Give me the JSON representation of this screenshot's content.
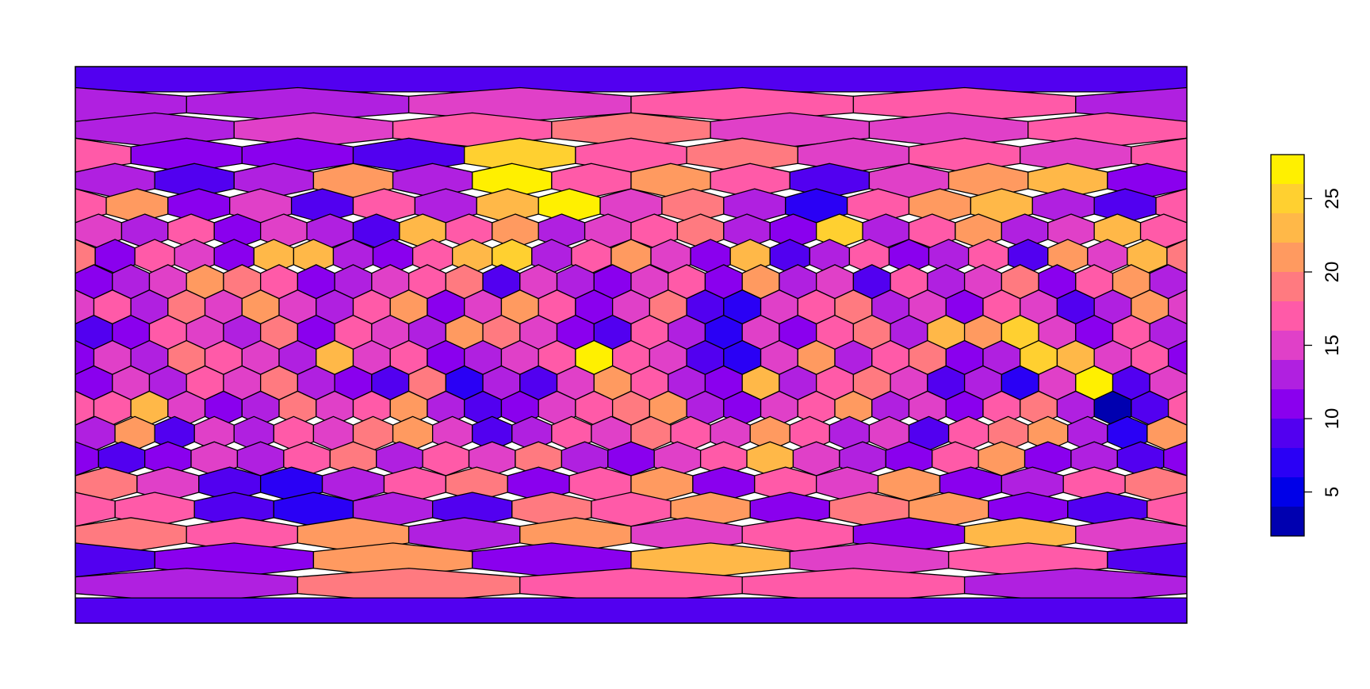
{
  "chart_data": {
    "type": "heatmap",
    "values": [
      [
        9
      ],
      [
        13,
        15,
        17,
        17,
        13
      ],
      [
        13,
        15,
        17,
        19,
        15,
        15,
        17
      ],
      [
        11,
        11,
        9,
        25,
        17,
        19,
        15,
        17,
        15,
        17
      ],
      [
        13,
        9,
        13,
        21,
        13,
        27,
        17,
        21,
        17,
        9,
        15,
        21,
        23,
        11
      ],
      [
        21,
        11,
        15,
        9,
        17,
        13,
        23,
        27,
        15,
        19,
        13,
        7,
        17,
        21,
        23,
        13,
        9,
        17
      ],
      [
        15,
        13,
        17,
        11,
        15,
        13,
        9,
        23,
        17,
        21,
        13,
        15,
        17,
        19,
        13,
        11,
        25,
        13,
        17,
        21,
        13,
        15,
        23,
        17
      ],
      [
        11,
        17,
        15,
        11,
        23,
        23,
        13,
        11,
        17,
        23,
        25,
        13,
        17,
        21,
        15,
        11,
        23,
        9,
        13,
        17,
        11,
        13,
        17,
        9,
        21,
        15,
        23,
        19
      ],
      [
        11,
        13,
        15,
        21,
        19,
        17,
        11,
        13,
        15,
        17,
        19,
        9,
        15,
        13,
        11,
        15,
        17,
        11,
        21,
        13,
        15,
        9,
        17,
        13,
        15,
        19,
        11,
        17,
        21,
        13
      ],
      [
        17,
        13,
        19,
        15,
        21,
        15,
        13,
        17,
        21,
        11,
        15,
        21,
        17,
        11,
        15,
        19,
        9,
        7,
        15,
        17,
        19,
        13,
        15,
        11,
        17,
        15,
        9,
        13,
        21,
        15
      ],
      [
        9,
        11,
        17,
        15,
        13,
        19,
        11,
        17,
        15,
        13,
        21,
        19,
        15,
        11,
        9,
        17,
        13,
        7,
        15,
        11,
        17,
        19,
        13,
        23,
        21,
        25,
        15,
        11,
        17,
        13
      ],
      [
        15,
        13,
        19,
        17,
        15,
        13,
        23,
        15,
        17,
        11,
        13,
        15,
        17,
        27,
        17,
        15,
        9,
        7,
        15,
        21,
        13,
        17,
        19,
        11,
        13,
        25,
        23,
        15,
        17,
        11
      ],
      [
        11,
        15,
        13,
        17,
        15,
        19,
        13,
        11,
        9,
        19,
        7,
        13,
        9,
        15,
        21,
        17,
        13,
        11,
        23,
        13,
        17,
        19,
        15,
        9,
        13,
        7,
        15,
        27,
        9,
        15
      ],
      [
        17,
        23,
        15,
        11,
        13,
        19,
        15,
        17,
        21,
        13,
        9,
        11,
        15,
        17,
        19,
        21,
        13,
        11,
        15,
        17,
        21,
        13,
        15,
        11,
        17,
        19,
        13,
        3,
        9,
        17
      ],
      [
        13,
        21,
        9,
        15,
        13,
        17,
        15,
        19,
        21,
        15,
        9,
        13,
        17,
        15,
        19,
        17,
        15,
        21,
        17,
        13,
        15,
        9,
        17,
        19,
        21,
        13,
        7,
        21
      ],
      [
        9,
        11,
        15,
        13,
        17,
        19,
        13,
        17,
        15,
        19,
        13,
        11,
        15,
        17,
        23,
        15,
        13,
        11,
        17,
        21,
        11,
        13,
        9,
        11
      ],
      [
        19,
        15,
        9,
        7,
        13,
        17,
        19,
        11,
        17,
        21,
        11,
        17,
        15,
        21,
        11,
        13,
        17,
        19
      ],
      [
        17,
        9,
        7,
        13,
        9,
        19,
        17,
        21,
        11,
        19,
        21,
        11,
        9,
        17
      ],
      [
        19,
        17,
        21,
        13,
        21,
        15,
        17,
        11,
        23,
        15
      ],
      [
        11,
        21,
        11,
        23,
        15,
        17,
        9
      ],
      [
        13,
        19,
        17,
        17,
        13
      ],
      [
        9
      ]
    ],
    "breaks": [
      2,
      4,
      6,
      8,
      10,
      12,
      14,
      16,
      18,
      20,
      22,
      24,
      26,
      28
    ],
    "colors": [
      "#0000b0",
      "#0000e8",
      "#2a00f5",
      "#5200f0",
      "#8a00ee",
      "#b020e0",
      "#e040c8",
      "#ff5aa8",
      "#ff7a80",
      "#ff9a60",
      "#ffb848",
      "#ffd030",
      "#fff000"
    ],
    "ylim": [
      2,
      28
    ],
    "yticks": [
      5,
      10,
      15,
      20,
      25
    ]
  }
}
